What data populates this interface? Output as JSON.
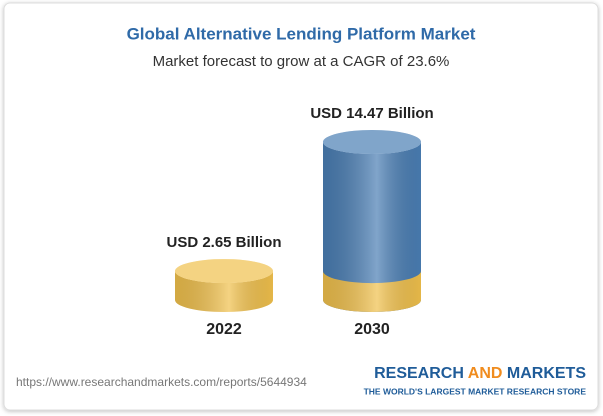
{
  "chart_data": {
    "type": "cylinder",
    "title": "Global Alternative Lending Platform Market",
    "subtitle": "Market forecast to grow at a CAGR of 23.6%",
    "categories": [
      "2022",
      "2030"
    ],
    "values": [
      2.65,
      14.47
    ],
    "value_labels": [
      "USD 2.65 Billion",
      "USD 14.47 Billion"
    ],
    "colors": [
      "#f0c04c",
      "#4a7eb4"
    ]
  },
  "footer": {
    "url": "https://www.researchandmarkets.com/reports/5644934",
    "brand": [
      "RESEARCH",
      "AND",
      "MARKETS"
    ],
    "tagline": "THE WORLD'S LARGEST MARKET RESEARCH STORE"
  }
}
